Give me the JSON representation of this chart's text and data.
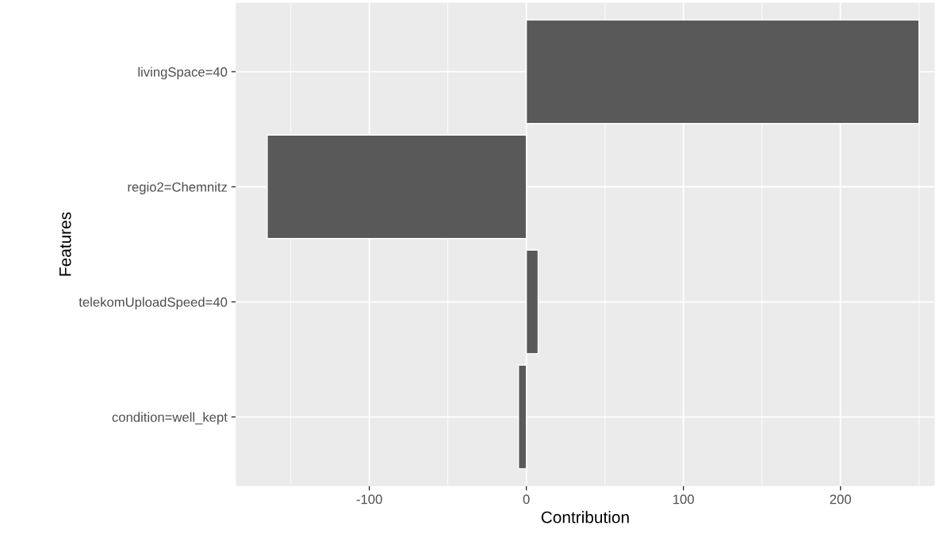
{
  "chart_data": {
    "type": "bar",
    "orientation": "horizontal",
    "xlabel": "Contribution",
    "ylabel": "Features",
    "categories": [
      "livingSpace=40",
      "regio2=Chemnitz",
      "telekomUploadSpeed=40",
      "condition=well_kept"
    ],
    "values": [
      250,
      -165,
      7.5,
      -5
    ],
    "color": "#595959",
    "xlim": [
      -185,
      260
    ],
    "xticks": [
      -100,
      0,
      100,
      200
    ],
    "grid": true
  }
}
